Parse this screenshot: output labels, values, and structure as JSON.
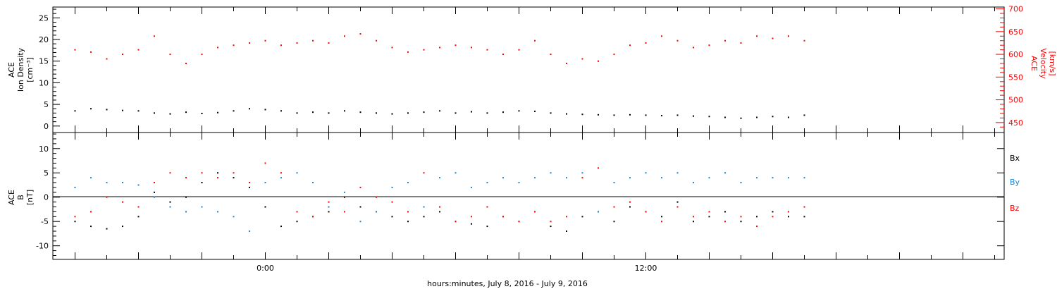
{
  "xlabel": "hours:minutes, July  8, 2016 - July  9, 2016",
  "chart_data": [
    {
      "type": "scatter",
      "panel": "top",
      "ylabel_lines": [
        "ACE",
        "Ion Density",
        "[cm⁻³]"
      ],
      "ylabel_right_lines": [
        "ACE",
        "Velocity",
        "[km/s]"
      ],
      "x_tick_labels": [
        "0:00",
        "12:00"
      ],
      "y_tick_labels": [
        "0",
        "5",
        "10",
        "15",
        "20",
        "25"
      ],
      "y2_tick_labels": [
        "450",
        "500",
        "550",
        "600",
        "650",
        "700"
      ],
      "ylim": [
        -1.5,
        27.5
      ],
      "y2lim": [
        428,
        704
      ],
      "xlim_hours": [
        -6.7,
        23.3
      ],
      "series": [
        {
          "axis": "left",
          "color": "#000000",
          "points": [
            [
              -6.0,
              3.5
            ],
            [
              -5.5,
              4.0
            ],
            [
              -5.0,
              3.8
            ],
            [
              -4.5,
              3.6
            ],
            [
              -4.0,
              3.5
            ],
            [
              -3.5,
              3.0
            ],
            [
              -3.0,
              2.8
            ],
            [
              -2.5,
              3.2
            ],
            [
              -2.0,
              2.9
            ],
            [
              -1.5,
              3.1
            ],
            [
              -1.0,
              3.5
            ],
            [
              -0.5,
              4.0
            ],
            [
              0.0,
              3.8
            ],
            [
              0.5,
              3.5
            ],
            [
              1.0,
              3.0
            ],
            [
              1.5,
              3.2
            ],
            [
              2.0,
              3.0
            ],
            [
              2.5,
              3.5
            ],
            [
              3.0,
              3.2
            ],
            [
              3.5,
              3.0
            ],
            [
              4.0,
              2.8
            ],
            [
              4.5,
              3.0
            ],
            [
              5.0,
              3.2
            ],
            [
              5.5,
              3.5
            ],
            [
              6.0,
              3.0
            ],
            [
              6.5,
              3.3
            ],
            [
              7.0,
              3.0
            ],
            [
              7.5,
              3.2
            ],
            [
              8.0,
              3.5
            ],
            [
              8.5,
              3.4
            ],
            [
              9.0,
              3.0
            ],
            [
              9.5,
              2.8
            ],
            [
              10.0,
              2.7
            ],
            [
              10.5,
              2.6
            ],
            [
              11.0,
              2.5
            ],
            [
              11.5,
              2.6
            ],
            [
              12.0,
              2.5
            ],
            [
              12.5,
              2.4
            ],
            [
              13.0,
              2.5
            ],
            [
              13.5,
              2.3
            ],
            [
              14.0,
              2.2
            ],
            [
              14.5,
              2.0
            ],
            [
              15.0,
              1.8
            ],
            [
              15.5,
              2.0
            ],
            [
              16.0,
              2.2
            ],
            [
              16.5,
              2.0
            ],
            [
              17.0,
              2.5
            ]
          ]
        },
        {
          "axis": "right",
          "color": "#ff0000",
          "points": [
            [
              -6.0,
              610
            ],
            [
              -5.5,
              605
            ],
            [
              -5.0,
              590
            ],
            [
              -4.5,
              600
            ],
            [
              -4.0,
              610
            ],
            [
              -3.5,
              640
            ],
            [
              -3.0,
              600
            ],
            [
              -2.5,
              580
            ],
            [
              -2.0,
              600
            ],
            [
              -1.5,
              615
            ],
            [
              -1.0,
              620
            ],
            [
              -0.5,
              625
            ],
            [
              0.0,
              630
            ],
            [
              0.5,
              620
            ],
            [
              1.0,
              625
            ],
            [
              1.5,
              630
            ],
            [
              2.0,
              625
            ],
            [
              2.5,
              640
            ],
            [
              3.0,
              645
            ],
            [
              3.5,
              630
            ],
            [
              4.0,
              615
            ],
            [
              4.5,
              605
            ],
            [
              5.0,
              610
            ],
            [
              5.5,
              615
            ],
            [
              6.0,
              620
            ],
            [
              6.5,
              615
            ],
            [
              7.0,
              610
            ],
            [
              7.5,
              600
            ],
            [
              8.0,
              610
            ],
            [
              8.5,
              630
            ],
            [
              9.0,
              600
            ],
            [
              9.5,
              580
            ],
            [
              10.0,
              590
            ],
            [
              10.5,
              585
            ],
            [
              11.0,
              600
            ],
            [
              11.5,
              620
            ],
            [
              12.0,
              625
            ],
            [
              12.5,
              640
            ],
            [
              13.0,
              630
            ],
            [
              13.5,
              615
            ],
            [
              14.0,
              620
            ],
            [
              14.5,
              630
            ],
            [
              15.0,
              625
            ],
            [
              15.5,
              640
            ],
            [
              16.0,
              635
            ],
            [
              16.5,
              640
            ],
            [
              17.0,
              630
            ]
          ]
        }
      ]
    },
    {
      "type": "scatter",
      "panel": "bottom",
      "ylabel_lines": [
        "ACE",
        "B",
        "[nT]"
      ],
      "legend": [
        "Bx",
        "By",
        "Bz"
      ],
      "y_tick_labels": [
        "-10",
        "-5",
        "0",
        "5",
        "10"
      ],
      "ylim": [
        -12.8,
        13.3
      ],
      "xlim_hours": [
        -6.7,
        23.3
      ],
      "series": [
        {
          "name": "Bx",
          "color": "#000000",
          "points": [
            [
              -6.0,
              -5
            ],
            [
              -5.5,
              -6
            ],
            [
              -5.0,
              -6.5
            ],
            [
              -4.5,
              -6
            ],
            [
              -4.0,
              -4
            ],
            [
              -3.5,
              1
            ],
            [
              -3.0,
              -1
            ],
            [
              -2.5,
              0
            ],
            [
              -2.0,
              3
            ],
            [
              -1.5,
              5
            ],
            [
              -1.0,
              4
            ],
            [
              -0.5,
              2
            ],
            [
              0.0,
              -2
            ],
            [
              0.5,
              -6
            ],
            [
              1.0,
              -5
            ],
            [
              1.5,
              -4
            ],
            [
              2.0,
              -3
            ],
            [
              2.5,
              0
            ],
            [
              3.0,
              -2
            ],
            [
              3.5,
              -3
            ],
            [
              4.0,
              -4
            ],
            [
              4.5,
              -5
            ],
            [
              5.0,
              -4
            ],
            [
              5.5,
              -3
            ],
            [
              6.0,
              -5
            ],
            [
              6.5,
              -5.5
            ],
            [
              7.0,
              -6
            ],
            [
              7.5,
              -4
            ],
            [
              8.0,
              -5
            ],
            [
              8.5,
              -3
            ],
            [
              9.0,
              -6
            ],
            [
              9.5,
              -7
            ],
            [
              10.0,
              -4
            ],
            [
              10.5,
              -3
            ],
            [
              11.0,
              -5
            ],
            [
              11.5,
              -2
            ],
            [
              12.0,
              -3
            ],
            [
              12.5,
              -4
            ],
            [
              13.0,
              -1
            ],
            [
              13.5,
              -5
            ],
            [
              14.0,
              -4
            ],
            [
              14.5,
              -3
            ],
            [
              15.0,
              -5
            ],
            [
              15.5,
              -4
            ],
            [
              16.0,
              -3
            ],
            [
              16.5,
              -4
            ],
            [
              17.0,
              -4
            ]
          ]
        },
        {
          "name": "By",
          "color": "#1a86d6",
          "points": [
            [
              -6.0,
              2
            ],
            [
              -5.5,
              4
            ],
            [
              -5.0,
              3
            ],
            [
              -4.5,
              3
            ],
            [
              -4.0,
              2.5
            ],
            [
              -3.5,
              0
            ],
            [
              -3.0,
              -2
            ],
            [
              -2.5,
              -3
            ],
            [
              -2.0,
              -2
            ],
            [
              -1.5,
              -3
            ],
            [
              -1.0,
              -4
            ],
            [
              -0.5,
              -7
            ],
            [
              0.0,
              3
            ],
            [
              0.5,
              4
            ],
            [
              1.0,
              5
            ],
            [
              1.5,
              3
            ],
            [
              2.0,
              -2
            ],
            [
              2.5,
              1
            ],
            [
              3.0,
              -5
            ],
            [
              3.5,
              -3
            ],
            [
              4.0,
              2
            ],
            [
              4.5,
              3
            ],
            [
              5.0,
              -2
            ],
            [
              5.5,
              4
            ],
            [
              6.0,
              5
            ],
            [
              6.5,
              2
            ],
            [
              7.0,
              3
            ],
            [
              7.5,
              4
            ],
            [
              8.0,
              3
            ],
            [
              8.5,
              4
            ],
            [
              9.0,
              5
            ],
            [
              9.5,
              4
            ],
            [
              10.0,
              5
            ],
            [
              10.5,
              -3
            ],
            [
              11.0,
              3
            ],
            [
              11.5,
              4
            ],
            [
              12.0,
              5
            ],
            [
              12.5,
              4
            ],
            [
              13.0,
              5
            ],
            [
              13.5,
              3
            ],
            [
              14.0,
              4
            ],
            [
              14.5,
              5
            ],
            [
              15.0,
              3
            ],
            [
              15.5,
              4
            ],
            [
              16.0,
              4
            ],
            [
              16.5,
              4
            ],
            [
              17.0,
              4
            ]
          ]
        },
        {
          "name": "Bz",
          "color": "#ff0000",
          "points": [
            [
              -6.0,
              -4
            ],
            [
              -5.5,
              -3
            ],
            [
              -5.0,
              0
            ],
            [
              -4.5,
              -1
            ],
            [
              -4.0,
              -2
            ],
            [
              -3.5,
              3
            ],
            [
              -3.0,
              5
            ],
            [
              -2.5,
              4
            ],
            [
              -2.0,
              5
            ],
            [
              -1.5,
              4
            ],
            [
              -1.0,
              5
            ],
            [
              -0.5,
              3
            ],
            [
              0.0,
              7
            ],
            [
              0.5,
              5
            ],
            [
              1.0,
              -3
            ],
            [
              1.5,
              -4
            ],
            [
              2.0,
              -1
            ],
            [
              2.5,
              -3
            ],
            [
              3.0,
              2
            ],
            [
              3.5,
              0
            ],
            [
              4.0,
              -1
            ],
            [
              4.5,
              -3
            ],
            [
              5.0,
              5
            ],
            [
              5.5,
              -2
            ],
            [
              6.0,
              -5
            ],
            [
              6.5,
              -4
            ],
            [
              7.0,
              -2
            ],
            [
              7.5,
              -4
            ],
            [
              8.0,
              -5
            ],
            [
              8.5,
              -3
            ],
            [
              9.0,
              -5
            ],
            [
              9.5,
              -4
            ],
            [
              10.0,
              4
            ],
            [
              10.5,
              6
            ],
            [
              11.0,
              -2
            ],
            [
              11.5,
              -1
            ],
            [
              12.0,
              -3
            ],
            [
              12.5,
              -5
            ],
            [
              13.0,
              -2
            ],
            [
              13.5,
              -4
            ],
            [
              14.0,
              -3
            ],
            [
              14.5,
              -5
            ],
            [
              15.0,
              -4
            ],
            [
              15.5,
              -6
            ],
            [
              16.0,
              -4
            ],
            [
              16.5,
              -3
            ],
            [
              17.0,
              -2
            ]
          ]
        }
      ]
    }
  ]
}
